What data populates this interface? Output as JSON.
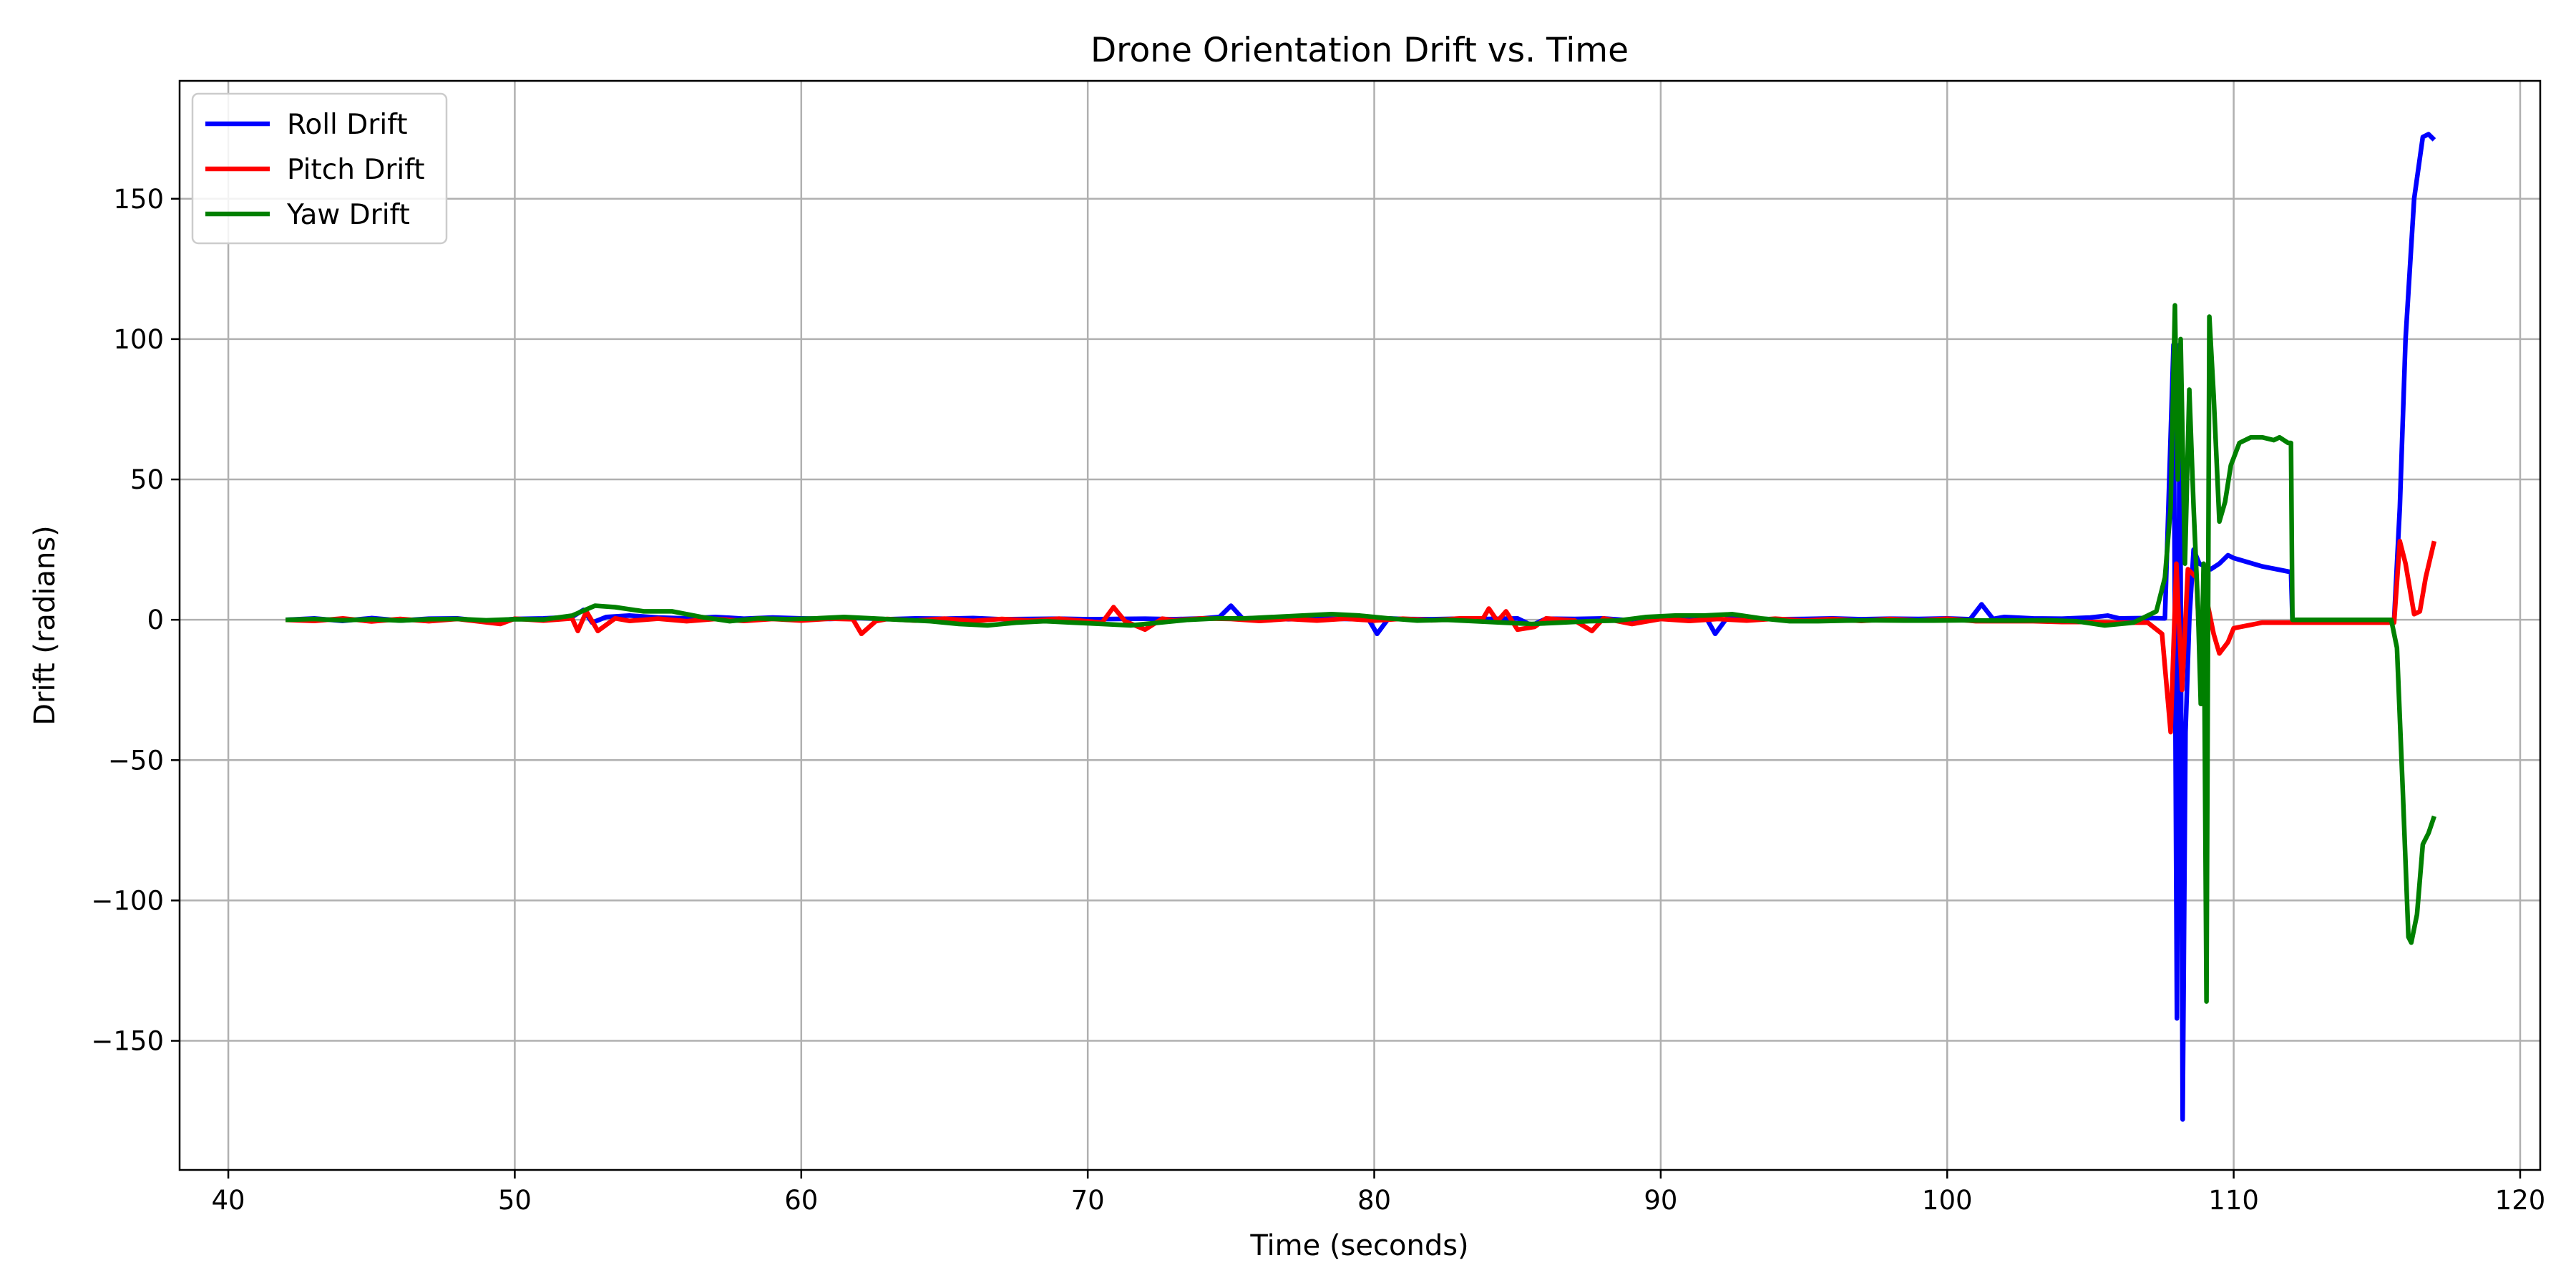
{
  "chart_data": {
    "type": "line",
    "title": "Drone Orientation Drift vs. Time",
    "xlabel": "Time (seconds)",
    "ylabel": "Drift (radians)",
    "xlim": [
      38.3,
      120.7
    ],
    "ylim": [
      -196,
      192
    ],
    "xticks": [
      40,
      50,
      60,
      70,
      80,
      90,
      100,
      110,
      120
    ],
    "yticks": [
      -150,
      -100,
      -50,
      0,
      50,
      100,
      150
    ],
    "xtick_labels": [
      "40",
      "50",
      "60",
      "70",
      "80",
      "90",
      "100",
      "110",
      "120"
    ],
    "ytick_labels": [
      "−150",
      "−100",
      "−50",
      "0",
      "50",
      "100",
      "150"
    ],
    "grid": true,
    "legend_position": "top-left",
    "series": [
      {
        "name": "Roll Drift",
        "color": "#0000ff",
        "points": [
          [
            42.0,
            0
          ],
          [
            43.0,
            0.5
          ],
          [
            44.0,
            -0.4
          ],
          [
            45.0,
            0.6
          ],
          [
            46.0,
            -0.3
          ],
          [
            47.0,
            0.4
          ],
          [
            48.0,
            0.5
          ],
          [
            49.0,
            -0.6
          ],
          [
            50.0,
            0.3
          ],
          [
            51.0,
            0.5
          ],
          [
            52.0,
            1.0
          ],
          [
            52.4,
            3.5
          ],
          [
            52.7,
            -1.0
          ],
          [
            53.2,
            1.0
          ],
          [
            54.0,
            1.5
          ],
          [
            55.0,
            0.8
          ],
          [
            56.0,
            0.5
          ],
          [
            57.0,
            1.0
          ],
          [
            58.0,
            0.4
          ],
          [
            59.0,
            0.8
          ],
          [
            60.0,
            0.5
          ],
          [
            61.0,
            0.3
          ],
          [
            62.0,
            0.6
          ],
          [
            63.0,
            0.2
          ],
          [
            64.0,
            0.5
          ],
          [
            65.0,
            0.4
          ],
          [
            66.0,
            0.6
          ],
          [
            67.0,
            0.2
          ],
          [
            68.0,
            0.3
          ],
          [
            69.0,
            0.4
          ],
          [
            70.0,
            0.2
          ],
          [
            71.0,
            0.3
          ],
          [
            72.0,
            0.4
          ],
          [
            73.0,
            0.2
          ],
          [
            74.0,
            0.5
          ],
          [
            74.6,
            1.0
          ],
          [
            75.0,
            5.0
          ],
          [
            75.4,
            0.5
          ],
          [
            76.0,
            0.6
          ],
          [
            77.0,
            0.2
          ],
          [
            78.0,
            0.4
          ],
          [
            79.0,
            0.3
          ],
          [
            79.8,
            0.2
          ],
          [
            80.1,
            -5.0
          ],
          [
            80.5,
            0.5
          ],
          [
            81.0,
            0.3
          ],
          [
            82.0,
            0.2
          ],
          [
            83.0,
            0.4
          ],
          [
            84.0,
            0.3
          ],
          [
            85.0,
            0.5
          ],
          [
            85.5,
            -2.0
          ],
          [
            86.0,
            0.4
          ],
          [
            87.0,
            0.3
          ],
          [
            88.0,
            0.5
          ],
          [
            89.0,
            -0.3
          ],
          [
            90.0,
            0.4
          ],
          [
            91.0,
            0.2
          ],
          [
            91.6,
            0.5
          ],
          [
            91.9,
            -5.0
          ],
          [
            92.3,
            0.5
          ],
          [
            93.0,
            0.4
          ],
          [
            94.0,
            0.2
          ],
          [
            95.0,
            0.3
          ],
          [
            96.0,
            0.5
          ],
          [
            97.0,
            0.2
          ],
          [
            98.0,
            0.4
          ],
          [
            99.0,
            0.3
          ],
          [
            100.0,
            0.5
          ],
          [
            100.8,
            0.2
          ],
          [
            101.2,
            5.5
          ],
          [
            101.6,
            0.3
          ],
          [
            102.0,
            1.0
          ],
          [
            103.0,
            0.5
          ],
          [
            104.0,
            0.4
          ],
          [
            105.0,
            0.8
          ],
          [
            105.6,
            1.5
          ],
          [
            106.0,
            0.5
          ],
          [
            107.0,
            0.6
          ],
          [
            107.6,
            0.5
          ],
          [
            107.9,
            98
          ],
          [
            108.02,
            -142
          ],
          [
            108.12,
            98
          ],
          [
            108.22,
            -178
          ],
          [
            108.32,
            -40
          ],
          [
            108.45,
            0
          ],
          [
            108.6,
            25
          ],
          [
            108.8,
            20
          ],
          [
            109.2,
            18
          ],
          [
            109.5,
            20
          ],
          [
            109.8,
            23
          ],
          [
            110.0,
            22
          ],
          [
            111.0,
            19
          ],
          [
            112.0,
            17
          ],
          [
            112.05,
            0
          ],
          [
            113.0,
            0
          ],
          [
            114.0,
            0
          ],
          [
            115.0,
            0
          ],
          [
            115.6,
            0
          ],
          [
            115.8,
            40
          ],
          [
            116.0,
            100
          ],
          [
            116.3,
            150
          ],
          [
            116.6,
            172
          ],
          [
            116.8,
            173
          ],
          [
            117.0,
            171
          ]
        ]
      },
      {
        "name": "Pitch Drift",
        "color": "#ff0000",
        "points": [
          [
            42.0,
            0
          ],
          [
            43.0,
            -0.4
          ],
          [
            44.0,
            0.5
          ],
          [
            45.0,
            -0.6
          ],
          [
            46.0,
            0.3
          ],
          [
            47.0,
            -0.5
          ],
          [
            48.0,
            0.3
          ],
          [
            49.5,
            -1.5
          ],
          [
            50.0,
            0.4
          ],
          [
            51.0,
            -0.3
          ],
          [
            52.0,
            0.5
          ],
          [
            52.2,
            -4.0
          ],
          [
            52.5,
            3.0
          ],
          [
            52.9,
            -4.0
          ],
          [
            53.5,
            0.5
          ],
          [
            54.0,
            -0.4
          ],
          [
            55.0,
            0.4
          ],
          [
            56.0,
            -0.5
          ],
          [
            57.0,
            0.3
          ],
          [
            58.0,
            -0.4
          ],
          [
            59.0,
            0.3
          ],
          [
            60.0,
            -0.3
          ],
          [
            61.0,
            0.4
          ],
          [
            61.8,
            0.2
          ],
          [
            62.1,
            -5.0
          ],
          [
            62.6,
            -0.5
          ],
          [
            63.0,
            0.3
          ],
          [
            64.0,
            -0.3
          ],
          [
            65.0,
            0.4
          ],
          [
            66.0,
            -0.4
          ],
          [
            67.0,
            0.3
          ],
          [
            68.0,
            -0.3
          ],
          [
            69.0,
            0.4
          ],
          [
            70.5,
            -1.0
          ],
          [
            70.9,
            4.5
          ],
          [
            71.3,
            -0.5
          ],
          [
            72.0,
            -3.5
          ],
          [
            72.6,
            0.4
          ],
          [
            73.0,
            -0.2
          ],
          [
            74.0,
            0.5
          ],
          [
            75.0,
            0.3
          ],
          [
            76.0,
            -0.4
          ],
          [
            77.0,
            0.3
          ],
          [
            78.0,
            -0.3
          ],
          [
            79.0,
            0.4
          ],
          [
            80.0,
            -0.3
          ],
          [
            81.0,
            0.4
          ],
          [
            82.0,
            -0.2
          ],
          [
            83.0,
            0.5
          ],
          [
            83.8,
            0.5
          ],
          [
            84.0,
            4.0
          ],
          [
            84.3,
            -0.5
          ],
          [
            84.6,
            3.0
          ],
          [
            85.0,
            -3.5
          ],
          [
            85.6,
            -2.5
          ],
          [
            86.0,
            0.5
          ],
          [
            87.0,
            -0.3
          ],
          [
            87.6,
            -4.0
          ],
          [
            88.0,
            0.5
          ],
          [
            89.0,
            -1.5
          ],
          [
            90.0,
            0.3
          ],
          [
            91.0,
            -0.4
          ],
          [
            92.0,
            0.3
          ],
          [
            93.0,
            -0.3
          ],
          [
            94.0,
            0.4
          ],
          [
            95.0,
            -0.3
          ],
          [
            96.0,
            0.3
          ],
          [
            97.0,
            -0.4
          ],
          [
            98.0,
            0.3
          ],
          [
            99.0,
            -0.3
          ],
          [
            100.0,
            0.4
          ],
          [
            101.0,
            -0.5
          ],
          [
            102.0,
            -0.5
          ],
          [
            103.0,
            -0.5
          ],
          [
            104.0,
            -0.8
          ],
          [
            105.0,
            -0.8
          ],
          [
            106.0,
            -1.0
          ],
          [
            107.0,
            -1.0
          ],
          [
            107.5,
            -5
          ],
          [
            107.8,
            -40
          ],
          [
            108.0,
            20
          ],
          [
            108.2,
            -25
          ],
          [
            108.4,
            18
          ],
          [
            108.7,
            15
          ],
          [
            108.9,
            -30
          ],
          [
            109.1,
            5
          ],
          [
            109.3,
            -5
          ],
          [
            109.5,
            -12
          ],
          [
            109.8,
            -8
          ],
          [
            110.0,
            -3
          ],
          [
            111.0,
            -1
          ],
          [
            112.0,
            -1
          ],
          [
            113.0,
            -1
          ],
          [
            114.0,
            -1
          ],
          [
            115.0,
            -1
          ],
          [
            115.6,
            -1
          ],
          [
            115.8,
            28
          ],
          [
            116.0,
            20
          ],
          [
            116.3,
            2
          ],
          [
            116.5,
            3
          ],
          [
            116.7,
            15
          ],
          [
            117.0,
            28
          ]
        ]
      },
      {
        "name": "Yaw Drift",
        "color": "#008000",
        "points": [
          [
            42.0,
            0
          ],
          [
            43.0,
            0.3
          ],
          [
            44.0,
            -0.2
          ],
          [
            45.0,
            0.2
          ],
          [
            46.0,
            -0.3
          ],
          [
            47.0,
            0.2
          ],
          [
            48.0,
            0.3
          ],
          [
            49.0,
            -0.2
          ],
          [
            50.0,
            0.2
          ],
          [
            51.0,
            0.1
          ],
          [
            52.0,
            1.5
          ],
          [
            52.8,
            5.0
          ],
          [
            53.5,
            4.5
          ],
          [
            54.5,
            3.0
          ],
          [
            55.5,
            3.0
          ],
          [
            56.5,
            1.0
          ],
          [
            57.5,
            -0.5
          ],
          [
            58.5,
            0.5
          ],
          [
            59.5,
            0.2
          ],
          [
            60.5,
            0.5
          ],
          [
            61.5,
            1.0
          ],
          [
            62.5,
            0.5
          ],
          [
            63.5,
            0.0
          ],
          [
            64.5,
            -0.5
          ],
          [
            65.5,
            -1.5
          ],
          [
            66.5,
            -2.0
          ],
          [
            67.5,
            -1.0
          ],
          [
            68.5,
            -0.5
          ],
          [
            69.5,
            -1.0
          ],
          [
            70.5,
            -1.5
          ],
          [
            71.5,
            -2.0
          ],
          [
            72.5,
            -1.0
          ],
          [
            73.5,
            0.0
          ],
          [
            74.5,
            0.5
          ],
          [
            75.5,
            0.5
          ],
          [
            76.5,
            1.0
          ],
          [
            77.5,
            1.5
          ],
          [
            78.5,
            2.0
          ],
          [
            79.5,
            1.5
          ],
          [
            80.5,
            0.5
          ],
          [
            81.5,
            -0.3
          ],
          [
            82.5,
            0.0
          ],
          [
            83.5,
            -0.5
          ],
          [
            84.5,
            -1.0
          ],
          [
            85.5,
            -1.5
          ],
          [
            86.5,
            -1.0
          ],
          [
            87.5,
            -0.5
          ],
          [
            88.5,
            -0.3
          ],
          [
            89.5,
            1.0
          ],
          [
            90.5,
            1.5
          ],
          [
            91.5,
            1.5
          ],
          [
            92.5,
            2.0
          ],
          [
            93.5,
            0.5
          ],
          [
            94.5,
            -0.5
          ],
          [
            95.5,
            -0.5
          ],
          [
            96.5,
            -0.3
          ],
          [
            97.5,
            -0.2
          ],
          [
            98.5,
            -0.3
          ],
          [
            99.5,
            -0.3
          ],
          [
            100.5,
            -0.2
          ],
          [
            101.5,
            -0.3
          ],
          [
            102.5,
            -0.3
          ],
          [
            103.5,
            -0.2
          ],
          [
            104.5,
            -0.5
          ],
          [
            105.5,
            -2.0
          ],
          [
            106.5,
            -1.0
          ],
          [
            107.3,
            3
          ],
          [
            107.6,
            15
          ],
          [
            107.8,
            40
          ],
          [
            107.95,
            112
          ],
          [
            108.05,
            50
          ],
          [
            108.15,
            100
          ],
          [
            108.3,
            20
          ],
          [
            108.45,
            82
          ],
          [
            108.6,
            40
          ],
          [
            108.75,
            5
          ],
          [
            108.85,
            -30
          ],
          [
            108.95,
            20
          ],
          [
            109.05,
            -136
          ],
          [
            109.15,
            108
          ],
          [
            109.3,
            80
          ],
          [
            109.5,
            35
          ],
          [
            109.7,
            42
          ],
          [
            109.9,
            55
          ],
          [
            110.2,
            63
          ],
          [
            110.6,
            65
          ],
          [
            111.0,
            65
          ],
          [
            111.4,
            64
          ],
          [
            111.6,
            65
          ],
          [
            111.9,
            63
          ],
          [
            112.0,
            63
          ],
          [
            112.05,
            0
          ],
          [
            113.0,
            0
          ],
          [
            114.0,
            0
          ],
          [
            115.0,
            0
          ],
          [
            115.5,
            0
          ],
          [
            115.7,
            -10
          ],
          [
            115.9,
            -60
          ],
          [
            116.1,
            -113
          ],
          [
            116.2,
            -115
          ],
          [
            116.4,
            -105
          ],
          [
            116.6,
            -80
          ],
          [
            116.8,
            -76
          ],
          [
            117.0,
            -70
          ]
        ]
      }
    ]
  }
}
